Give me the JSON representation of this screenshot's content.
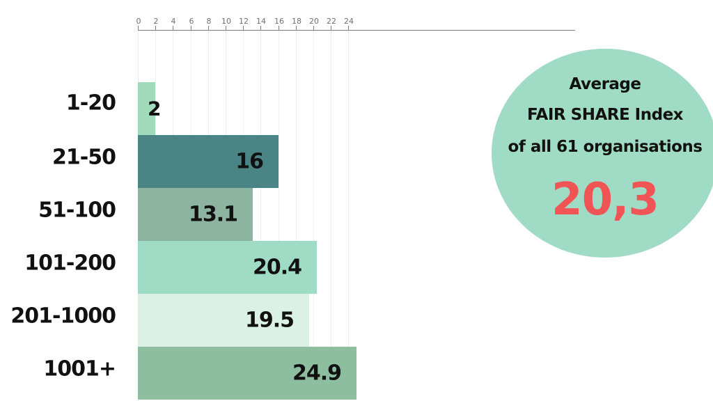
{
  "chart_data": {
    "type": "bar",
    "orientation": "horizontal",
    "title": "",
    "xlabel": "",
    "ylabel": "",
    "categories": [
      "1-20",
      "21-50",
      "51-100",
      "101-200",
      "201-1000",
      "1001+"
    ],
    "values": [
      2,
      16,
      13.1,
      20.4,
      19.5,
      24.9
    ],
    "value_labels": [
      "2",
      "16",
      "13.1",
      "20.4",
      "19.5",
      "24.9"
    ],
    "bar_colors": [
      "#a0dbbc",
      "#4a8484",
      "#8db3a1",
      "#a0dbc5",
      "#dcf1e5",
      "#8dbea0"
    ],
    "x_ticks": [
      0,
      2,
      4,
      6,
      8,
      10,
      12,
      14,
      16,
      18,
      20,
      22,
      24
    ],
    "xlim": [
      0,
      25
    ],
    "x_axis_position": "top",
    "grid": true,
    "legend": null,
    "annotation": {
      "lines": [
        "Average",
        "FAIR SHARE Index",
        "of all 61 organisations"
      ],
      "value": "20,3",
      "value_color": "#f05454",
      "background_color": "#a0dbc5"
    }
  }
}
